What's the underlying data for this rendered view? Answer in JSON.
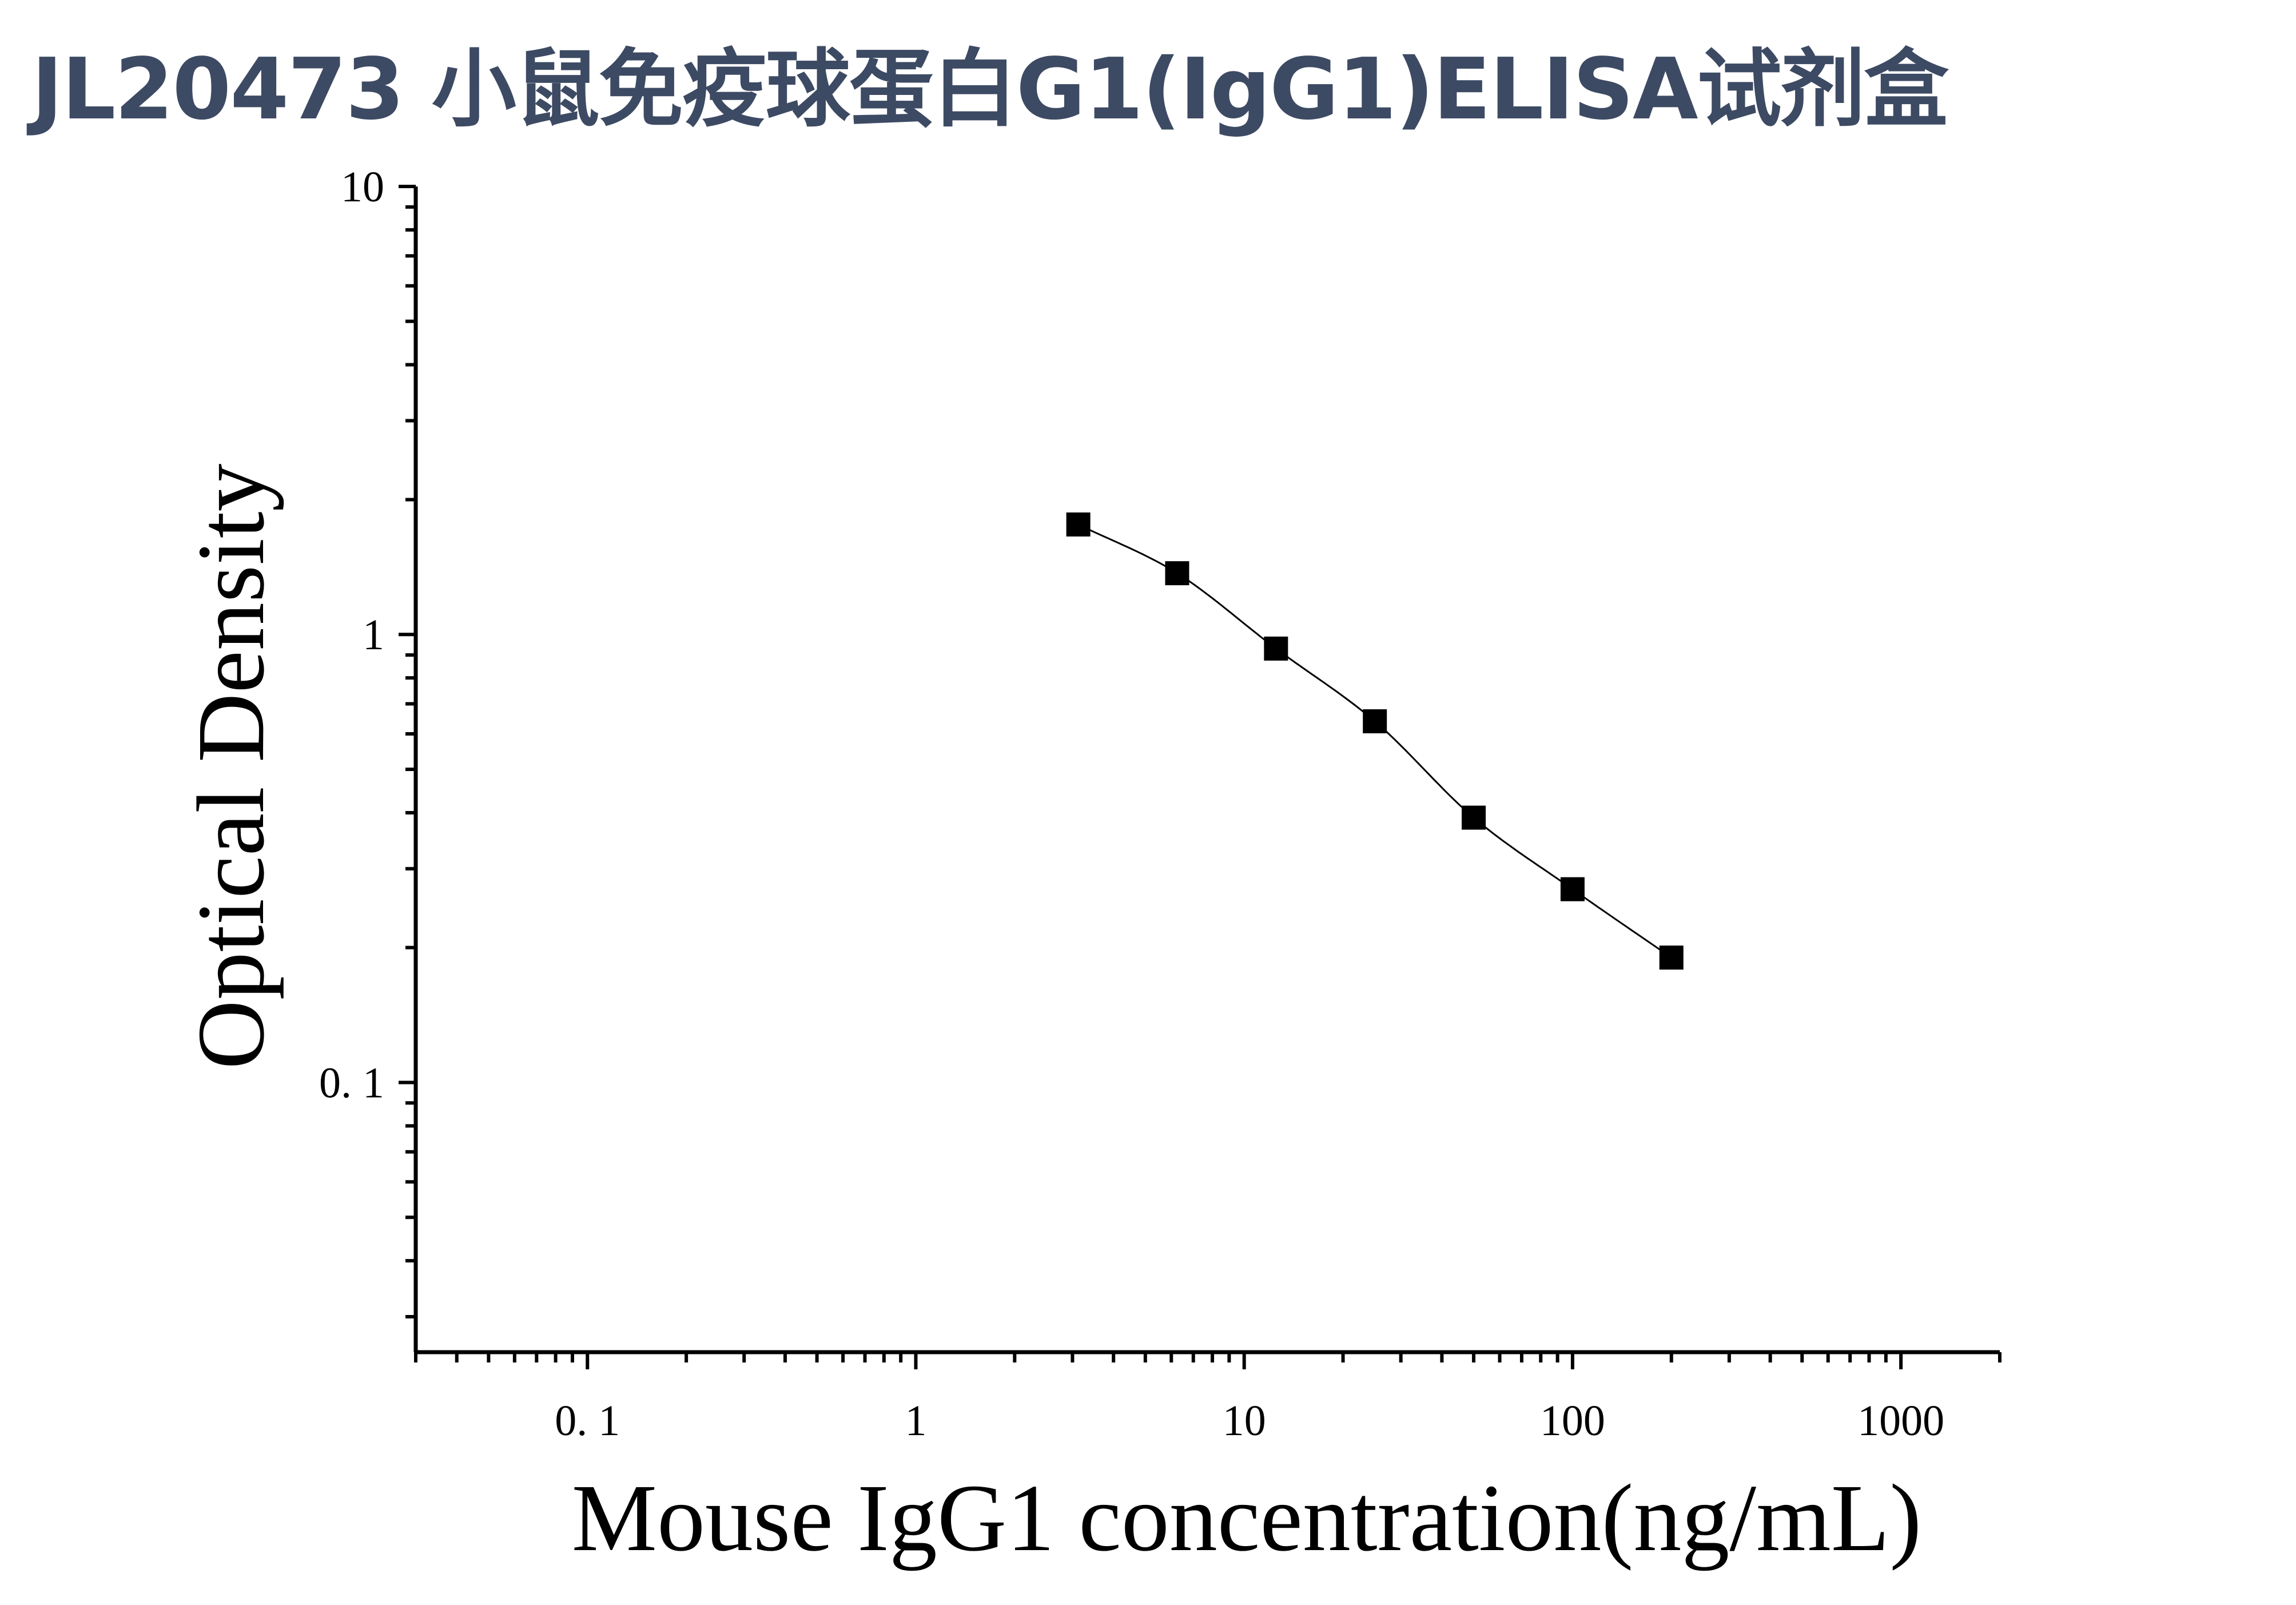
{
  "title": "JL20473 小鼠免疫球蛋白G1(IgG1)ELISA试剂盒",
  "colors": {
    "title": "#3d4a63",
    "axis": "#000000",
    "marker": "#000000"
  },
  "chart_data": {
    "type": "scatter",
    "x_scale": "log",
    "y_scale": "log",
    "xlabel": "Mouse IgG1 concentration(ng/mL)",
    "ylabel": "Optical Density",
    "xlim": [
      0.03,
      2000
    ],
    "ylim": [
      0.025,
      10
    ],
    "x_tick_labels": [
      "0. 1",
      "1",
      "10",
      "100",
      "1000"
    ],
    "x_tick_values": [
      0.1,
      1,
      10,
      100,
      1000
    ],
    "y_tick_labels": [
      "0. 1",
      "1",
      "10"
    ],
    "y_tick_values": [
      0.1,
      1,
      10
    ],
    "marker": "square",
    "fit_line": true,
    "series": [
      {
        "x": [
          3.125,
          6.25,
          12.5,
          25,
          50,
          100,
          200
        ],
        "y": [
          1.76,
          1.37,
          0.93,
          0.64,
          0.39,
          0.27,
          0.19
        ]
      }
    ]
  }
}
